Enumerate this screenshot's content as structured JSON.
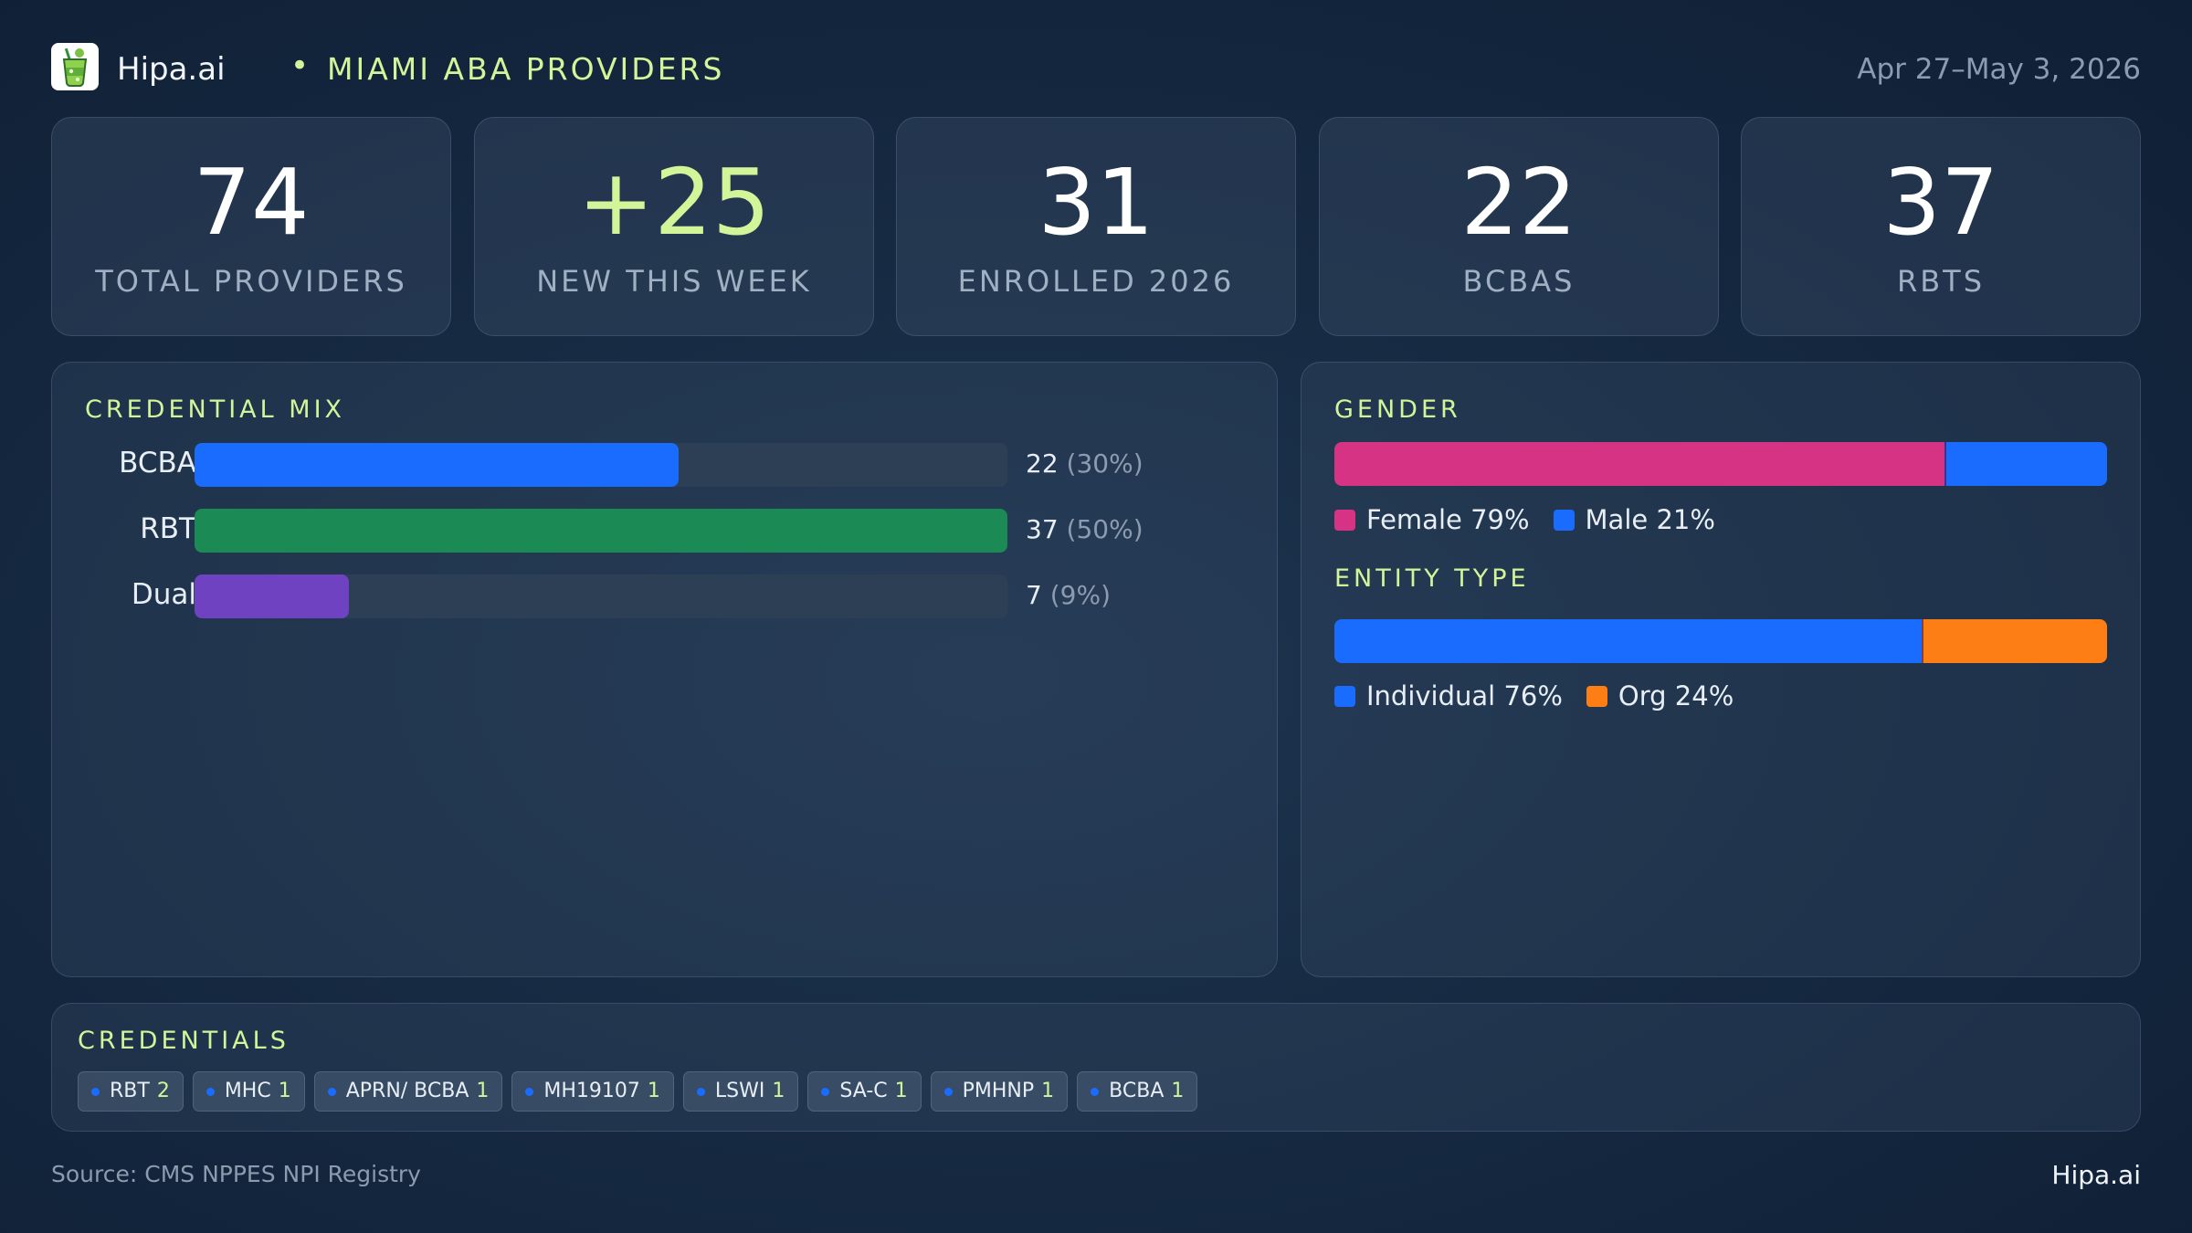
{
  "header": {
    "brand": "Hipa.ai",
    "separator": "•",
    "region": "MIAMI ABA PROVIDERS",
    "date_range": "Apr 27–May 3, 2026",
    "logo_icon": "cocktail-glass-icon"
  },
  "stats": [
    {
      "value": "74",
      "label": "TOTAL PROVIDERS"
    },
    {
      "value": "+25",
      "label": "NEW THIS WEEK"
    },
    {
      "value": "31",
      "label": "ENROLLED 2026"
    },
    {
      "value": "22",
      "label": "BCBAS"
    },
    {
      "value": "37",
      "label": "RBTS"
    }
  ],
  "credential_mix": {
    "title": "CREDENTIAL MIX",
    "rows": [
      {
        "label": "BCBA",
        "count": "22",
        "pct_text": "(30%)",
        "fraction": 0.595,
        "color": "#1a6cff"
      },
      {
        "label": "RBT",
        "count": "37",
        "pct_text": "(50%)",
        "fraction": 1.0,
        "color": "#1c8a55"
      },
      {
        "label": "Dual",
        "count": "7",
        "pct_text": "(9%)",
        "fraction": 0.19,
        "color": "#6f42c1"
      }
    ]
  },
  "gender": {
    "title": "GENDER",
    "segments": [
      {
        "label": "Female 79%",
        "share": 0.79,
        "color": "#d63384"
      },
      {
        "label": "Male 21%",
        "share": 0.21,
        "color": "#1a6cff"
      }
    ]
  },
  "entity_type": {
    "title": "ENTITY TYPE",
    "segments": [
      {
        "label": "Individual 76%",
        "share": 0.76,
        "color": "#1a6cff"
      },
      {
        "label": "Org 24%",
        "share": 0.24,
        "color": "#fd7e14"
      }
    ]
  },
  "credentials": {
    "title": "CREDENTIALS",
    "chips": [
      {
        "label": "RBT",
        "count": "2"
      },
      {
        "label": "MHC",
        "count": "1"
      },
      {
        "label": "APRN/ BCBA",
        "count": "1"
      },
      {
        "label": "MH19107",
        "count": "1"
      },
      {
        "label": "LSWI",
        "count": "1"
      },
      {
        "label": "SA-C",
        "count": "1"
      },
      {
        "label": "PMHNP",
        "count": "1"
      },
      {
        "label": "BCBA",
        "count": "1"
      }
    ]
  },
  "footer": {
    "source": "Source: CMS NPPES NPI Registry",
    "brand": "Hipa.ai"
  }
}
